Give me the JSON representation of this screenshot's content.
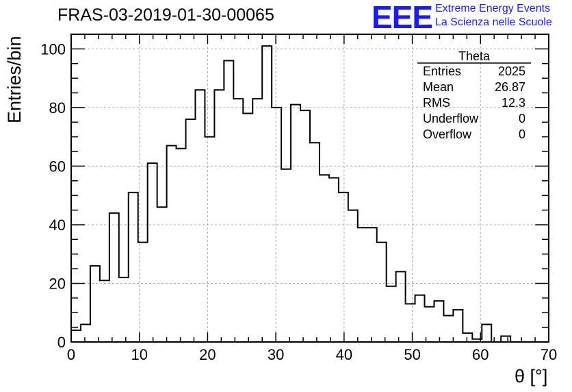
{
  "page_title": "FRAS-03-2019-01-30-00065",
  "logo": {
    "mark": "EEE",
    "line1": "Extreme Energy Events",
    "line2": "La Scienza nelle Scuole"
  },
  "chart_data": {
    "type": "bar",
    "subtype": "histogram-step",
    "title": "FRAS-03-2019-01-30-00065",
    "xlabel": "θ [°]",
    "ylabel": "Entries/bin",
    "xlim": [
      0,
      70
    ],
    "ylim": [
      0,
      105
    ],
    "bin_width": 1.4,
    "xticks": [
      0,
      10,
      20,
      30,
      40,
      50,
      60,
      70
    ],
    "yticks": [
      0,
      20,
      40,
      60,
      80,
      100
    ],
    "grid": true,
    "counts": [
      4,
      6,
      26,
      21,
      44,
      22,
      51,
      34,
      61,
      46,
      67,
      66,
      76,
      86,
      70,
      86,
      96,
      83,
      78,
      83,
      101,
      80,
      59,
      81,
      79,
      68,
      57,
      56,
      51,
      45,
      39,
      39,
      34,
      19,
      24,
      13,
      16,
      12,
      14,
      9,
      11,
      3,
      1,
      6,
      0,
      2,
      0,
      0,
      0,
      0
    ],
    "stats": {
      "title": "Theta",
      "rows": [
        {
          "label": "Entries",
          "value": "2025"
        },
        {
          "label": "Mean",
          "value": "26.87"
        },
        {
          "label": "RMS",
          "value": "12.3"
        },
        {
          "label": "Underflow",
          "value": "0"
        },
        {
          "label": "Overflow",
          "value": "0"
        }
      ]
    }
  }
}
